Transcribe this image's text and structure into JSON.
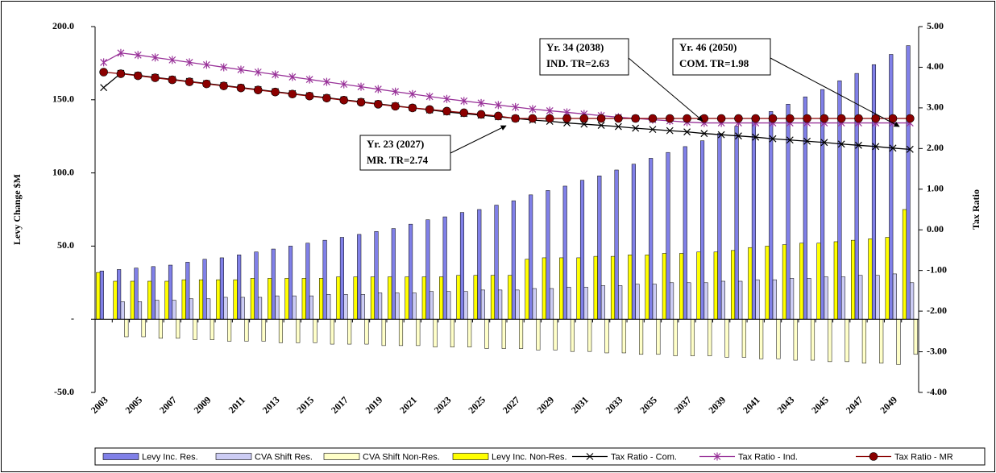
{
  "chart_data": {
    "type": "bar-line",
    "y_label": "Levy Change $M",
    "y2_label": "Tax Ratio",
    "categories": [
      "2003",
      null,
      "2005",
      null,
      "2007",
      null,
      "2009",
      null,
      "2011",
      null,
      "2013",
      null,
      "2015",
      null,
      "2017",
      null,
      "2019",
      null,
      "2021",
      null,
      "2023",
      null,
      "2025",
      null,
      "2027",
      null,
      "2029",
      null,
      "2031",
      null,
      "2033",
      null,
      "2035",
      null,
      "2037",
      null,
      "2039",
      null,
      "2041",
      null,
      "2043",
      null,
      "2045",
      null,
      "2047",
      null,
      "2049",
      null
    ],
    "ylim": [
      -50,
      200
    ],
    "yticks": [
      {
        "value": 200,
        "label": "200.0"
      },
      {
        "value": 150,
        "label": "150.0"
      },
      {
        "value": 100,
        "label": "100.0"
      },
      {
        "value": 50,
        "label": "50.0"
      },
      {
        "value": 0,
        "label": "-"
      },
      {
        "value": -50,
        "label": "-50.0"
      }
    ],
    "y2lim": [
      -4,
      5
    ],
    "y2ticks": [
      {
        "value": 5,
        "label": "5.00"
      },
      {
        "value": 4,
        "label": "4.00"
      },
      {
        "value": 3,
        "label": "3.00"
      },
      {
        "value": 2,
        "label": "2.00"
      },
      {
        "value": 1,
        "label": "1.00"
      },
      {
        "value": 0,
        "label": "0.00"
      },
      {
        "value": -1,
        "label": "-1.00"
      },
      {
        "value": -2,
        "label": "-2.00"
      },
      {
        "value": -3,
        "label": "-3.00"
      },
      {
        "value": -4,
        "label": "-4.00"
      }
    ],
    "series": [
      {
        "name": "Levy Inc. Res.",
        "kind": "bar",
        "color": "#8080e8",
        "values": [
          33,
          34,
          35,
          36,
          37,
          39,
          41,
          42,
          44,
          46,
          48,
          50,
          52,
          54,
          56,
          58,
          60,
          62,
          65,
          68,
          70,
          73,
          75,
          78,
          81,
          85,
          88,
          91,
          95,
          98,
          102,
          106,
          110,
          114,
          118,
          122,
          127,
          132,
          137,
          142,
          147,
          152,
          157,
          163,
          168,
          174,
          181,
          187
        ]
      },
      {
        "name": "CVA Shift Res.",
        "kind": "bar",
        "color": "#ccccf4",
        "values": [
          0,
          12,
          12,
          13,
          13,
          14,
          14,
          15,
          15,
          15,
          16,
          16,
          16,
          17,
          17,
          17,
          18,
          18,
          18,
          19,
          19,
          19,
          20,
          20,
          20,
          21,
          21,
          22,
          22,
          23,
          23,
          24,
          24,
          25,
          25,
          25,
          26,
          26,
          27,
          27,
          28,
          28,
          29,
          29,
          30,
          30,
          31,
          25
        ]
      },
      {
        "name": "CVA Shift Non-Res.",
        "kind": "bar",
        "color": "#ffffc8",
        "values": [
          0,
          -12,
          -12,
          -13,
          -13,
          -14,
          -14,
          -15,
          -15,
          -15,
          -16,
          -16,
          -16,
          -17,
          -17,
          -17,
          -18,
          -18,
          -18,
          -19,
          -19,
          -19,
          -20,
          -20,
          -20,
          -21,
          -21,
          -22,
          -22,
          -23,
          -23,
          -24,
          -24,
          -25,
          -25,
          -25,
          -26,
          -26,
          -27,
          -27,
          -28,
          -28,
          -29,
          -29,
          -30,
          -30,
          -31,
          -24
        ]
      },
      {
        "name": "Levy Inc. Non-Res.",
        "kind": "bar",
        "color": "#ffff00",
        "values": [
          32,
          26,
          26,
          26,
          26,
          27,
          27,
          27,
          27,
          28,
          28,
          28,
          28,
          28,
          29,
          29,
          29,
          29,
          29,
          29,
          29,
          30,
          30,
          30,
          30,
          41,
          42,
          42,
          42,
          43,
          43,
          44,
          44,
          45,
          45,
          46,
          46,
          47,
          49,
          50,
          51,
          52,
          52,
          53,
          54,
          55,
          56,
          75
        ]
      },
      {
        "name": "Tax Ratio - Com.",
        "kind": "line",
        "axis": "y2",
        "marker": "x",
        "color": "#000000",
        "values": [
          3.5,
          3.85,
          3.8,
          3.75,
          3.7,
          3.65,
          3.6,
          3.55,
          3.5,
          3.45,
          3.4,
          3.35,
          3.3,
          3.25,
          3.2,
          3.15,
          3.1,
          3.05,
          3.0,
          2.95,
          2.9,
          2.86,
          2.82,
          2.78,
          2.74,
          2.7,
          2.67,
          2.63,
          2.6,
          2.57,
          2.54,
          2.5,
          2.47,
          2.44,
          2.41,
          2.37,
          2.34,
          2.31,
          2.28,
          2.24,
          2.21,
          2.18,
          2.15,
          2.11,
          2.08,
          2.05,
          2.01,
          1.98
        ]
      },
      {
        "name": "Tax Ratio - Ind.",
        "kind": "line",
        "axis": "y2",
        "marker": "star",
        "color": "#993399",
        "values": [
          4.12,
          4.35,
          4.3,
          4.24,
          4.18,
          4.12,
          4.06,
          4.0,
          3.94,
          3.88,
          3.82,
          3.76,
          3.7,
          3.64,
          3.58,
          3.52,
          3.46,
          3.4,
          3.34,
          3.28,
          3.22,
          3.17,
          3.12,
          3.07,
          3.02,
          2.97,
          2.93,
          2.89,
          2.85,
          2.81,
          2.77,
          2.74,
          2.71,
          2.68,
          2.65,
          2.63,
          2.63,
          2.63,
          2.63,
          2.63,
          2.63,
          2.63,
          2.63,
          2.63,
          2.63,
          2.63,
          2.63,
          2.63
        ]
      },
      {
        "name": "Tax Ratio - MR",
        "kind": "line",
        "axis": "y2",
        "marker": "circle",
        "color": "#8b0000",
        "values": [
          3.88,
          3.84,
          3.79,
          3.74,
          3.69,
          3.64,
          3.59,
          3.54,
          3.49,
          3.44,
          3.39,
          3.34,
          3.29,
          3.24,
          3.19,
          3.14,
          3.09,
          3.04,
          3.0,
          2.96,
          2.92,
          2.88,
          2.84,
          2.8,
          2.74,
          2.74,
          2.74,
          2.74,
          2.74,
          2.74,
          2.74,
          2.74,
          2.74,
          2.74,
          2.74,
          2.74,
          2.74,
          2.74,
          2.74,
          2.74,
          2.74,
          2.74,
          2.74,
          2.74,
          2.74,
          2.74,
          2.74,
          2.74
        ]
      }
    ],
    "annotations": [
      {
        "lines": [
          "Yr. 23 (2027)",
          "MR. TR=2.74"
        ]
      },
      {
        "lines": [
          "Yr. 34 (2038)",
          "IND. TR=2.63"
        ]
      },
      {
        "lines": [
          "Yr. 46 (2050)",
          "COM. TR=1.98"
        ]
      }
    ]
  }
}
